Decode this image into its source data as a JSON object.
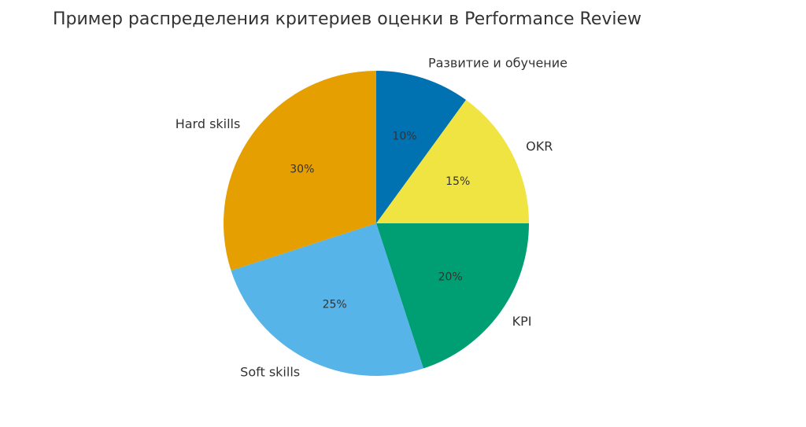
{
  "chart_data": {
    "type": "pie",
    "title": "Пример распределения критериев оценки в Performance Review",
    "categories": [
      "Развитие и обучение",
      "OKR",
      "KPI",
      "Soft skills",
      "Hard skills"
    ],
    "values": [
      10,
      15,
      20,
      25,
      30
    ],
    "value_labels": [
      "10%",
      "15%",
      "20%",
      "25%",
      "30%"
    ],
    "colors": [
      "#0072b2",
      "#f0e442",
      "#009e73",
      "#56b4e9",
      "#e69f00"
    ]
  }
}
